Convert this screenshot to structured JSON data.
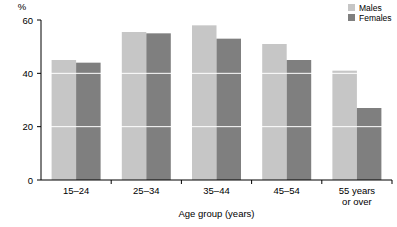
{
  "chart_data": {
    "type": "bar",
    "y_label": "%",
    "x_label": "Age group (years)",
    "categories": [
      "15–24",
      "25–34",
      "35–44",
      "45–54",
      "55 years or over"
    ],
    "series": [
      {
        "name": "Males",
        "color": "#c6c6c6",
        "values": [
          45,
          55.5,
          58,
          51,
          41
        ]
      },
      {
        "name": "Females",
        "color": "#7f7f7f",
        "values": [
          44,
          55,
          53,
          45,
          27
        ]
      }
    ],
    "ylim": [
      0,
      60
    ],
    "yticks": [
      0,
      20,
      40,
      60
    ],
    "grid": true,
    "legend": "upper right"
  }
}
